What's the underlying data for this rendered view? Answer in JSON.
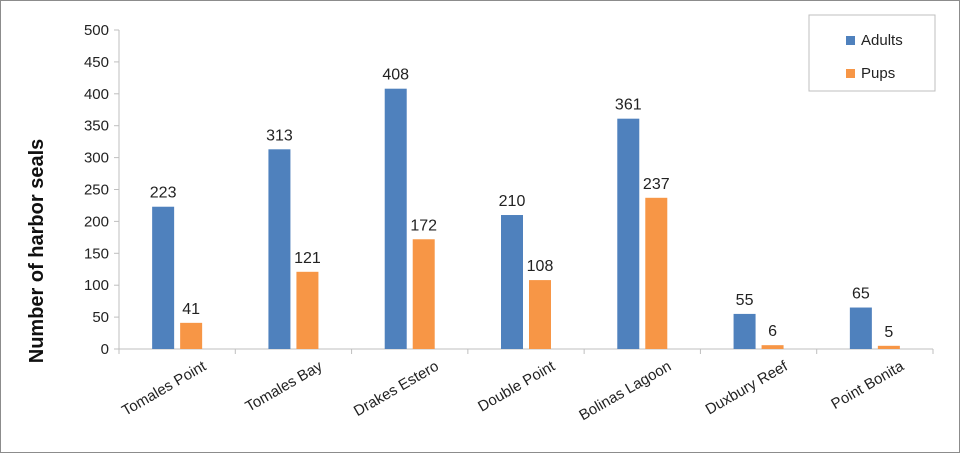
{
  "chart_data": {
    "type": "bar",
    "title": "",
    "xlabel": "",
    "ylabel": "Number of harbor seals",
    "ylim": [
      0,
      500
    ],
    "yticks": [
      0,
      50,
      100,
      150,
      200,
      250,
      300,
      350,
      400,
      450,
      500
    ],
    "grid": false,
    "legend_position": "top-right",
    "categories": [
      "Tomales Point",
      "Tomales Bay",
      "Drakes Estero",
      "Double Point",
      "Bolinas Lagoon",
      "Duxbury Reef",
      "Point Bonita"
    ],
    "series": [
      {
        "name": "Adults",
        "color": "#4f81bd",
        "values": [
          223,
          313,
          408,
          210,
          361,
          55,
          65
        ]
      },
      {
        "name": "Pups",
        "color": "#f79646",
        "values": [
          41,
          121,
          172,
          108,
          237,
          6,
          5
        ]
      }
    ]
  }
}
